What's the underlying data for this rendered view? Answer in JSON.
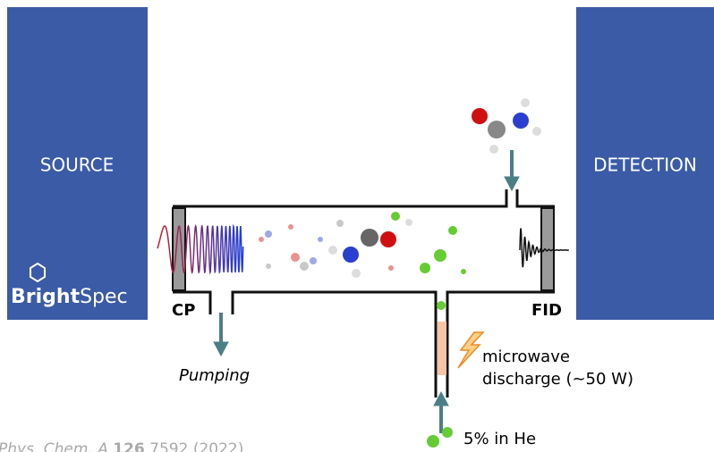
{
  "labels": {
    "source": "SOURCE",
    "detection": "DETECTION",
    "brand_bold": "Bright",
    "brand_light": "Spec",
    "cp": "CP",
    "fid": "FID",
    "pumping": "Pumping",
    "discharge_line1": "microwave",
    "discharge_line2": "discharge (~50 W)",
    "mixture": "5% in He",
    "citation_journal": "Phys. Chem. A",
    "citation_volume": "126",
    "citation_rest": "7592 (2022)"
  }
}
